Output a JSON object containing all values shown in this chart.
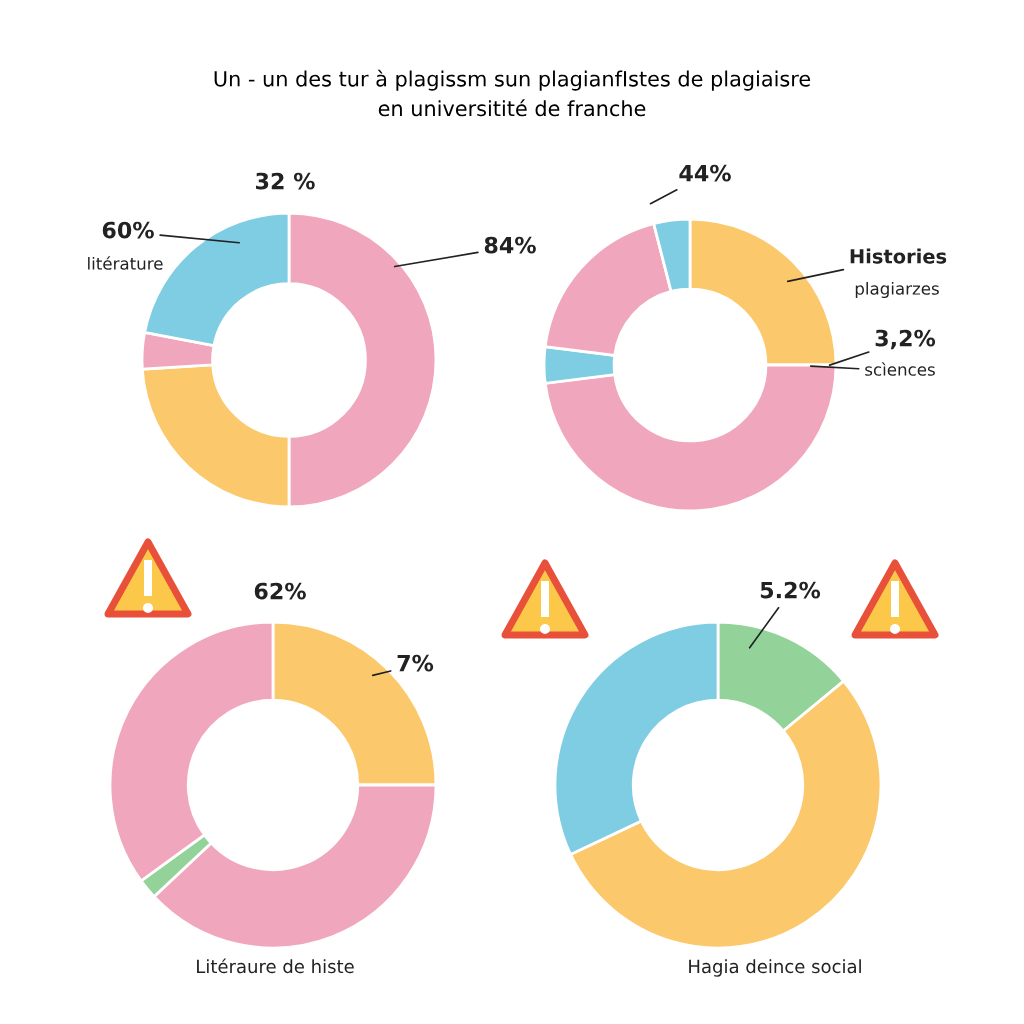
{
  "chart_data": [
    {
      "type": "donut",
      "title": "Un - un des tur à plagissm sun plagianfIstes de plagiaisre\nen universitité de franche",
      "categories": [
        null,
        null,
        null,
        null
      ],
      "values": [
        50,
        24,
        4,
        22
      ],
      "colors": [
        "#f0a6bd",
        "#fbc96b",
        "#f0a6bd",
        "#7ecde3"
      ],
      "annotations": [
        "32 %",
        "60%",
        "litérature",
        "84%"
      ]
    },
    {
      "type": "donut",
      "categories": [
        null,
        null,
        null,
        null,
        null
      ],
      "values": [
        25,
        48,
        4,
        19,
        4
      ],
      "colors": [
        "#fbc96b",
        "#f0a6bd",
        "#7ecde3",
        "#f0a6bd",
        "#7ecde3"
      ],
      "annotations": [
        "44%",
        "Histories",
        "plagiarzes",
        "3,2%",
        "scìences"
      ]
    },
    {
      "type": "donut",
      "categories": [
        null,
        null,
        null,
        null
      ],
      "values": [
        25,
        38,
        2,
        35
      ],
      "colors": [
        "#fbc96b",
        "#f0a6bd",
        "#93d39a",
        "#f0a6bd"
      ],
      "annotations": [
        "62%",
        "7%"
      ],
      "xlabel": "Litéraure de histe"
    },
    {
      "type": "donut",
      "categories": [
        null,
        null,
        null
      ],
      "values": [
        14,
        54,
        32
      ],
      "colors": [
        "#93d39a",
        "#fbc96b",
        "#7ecde3"
      ],
      "annotations": [
        "5.2%"
      ],
      "xlabel": "Hagia deince social"
    }
  ]
}
